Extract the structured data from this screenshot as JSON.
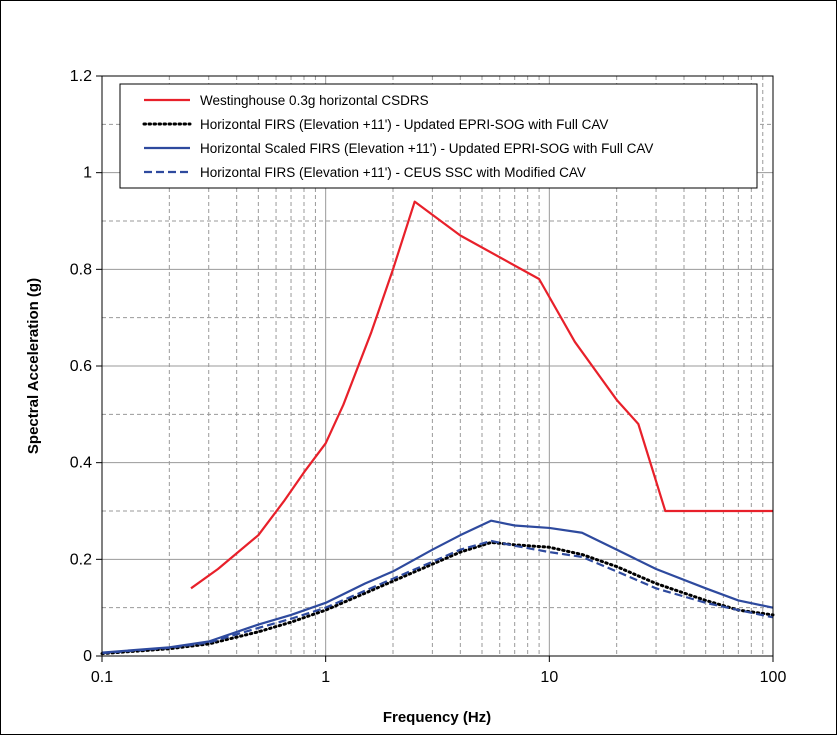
{
  "chart_data": {
    "type": "line",
    "title": "",
    "xlabel": "Frequency (Hz)",
    "ylabel": "Spectral Acceleration (g)",
    "xscale": "log",
    "xlim": [
      0.1,
      100
    ],
    "ylim": [
      0,
      1.2
    ],
    "x_ticks": [
      0.1,
      1,
      10,
      100
    ],
    "x_tick_labels": [
      "0.1",
      "1",
      "10",
      "100"
    ],
    "y_ticks": [
      0,
      0.2,
      0.4,
      0.6,
      0.8,
      1,
      1.2
    ],
    "y_tick_labels": [
      "0",
      "0.2",
      "0.4",
      "0.6",
      "0.8",
      "1",
      "1.2"
    ],
    "grid": true,
    "legend_position": "top",
    "series": [
      {
        "name": "Westinghouse 0.3g horizontal CSDRS",
        "color": "#e8202a",
        "style": "solid",
        "x": [
          0.25,
          0.33,
          0.5,
          0.65,
          0.8,
          1.0,
          1.2,
          1.6,
          2.0,
          2.5,
          4.0,
          9.0,
          13.0,
          20.0,
          25.0,
          33.0,
          50.0,
          100.0
        ],
        "y": [
          0.14,
          0.18,
          0.25,
          0.32,
          0.38,
          0.44,
          0.52,
          0.67,
          0.8,
          0.94,
          0.87,
          0.78,
          0.65,
          0.53,
          0.48,
          0.3,
          0.3,
          0.3
        ]
      },
      {
        "name": "Horizontal FIRS (Elevation +11') - Updated EPRI-SOG with Full CAV",
        "color": "#000000",
        "style": "dotted",
        "x": [
          0.1,
          0.2,
          0.3,
          0.5,
          0.7,
          1.0,
          1.5,
          2.0,
          3.0,
          4.0,
          5.5,
          7.0,
          10.0,
          14.0,
          20.0,
          30.0,
          50.0,
          70.0,
          100.0
        ],
        "y": [
          0.005,
          0.015,
          0.025,
          0.05,
          0.07,
          0.095,
          0.13,
          0.155,
          0.19,
          0.215,
          0.235,
          0.23,
          0.225,
          0.21,
          0.185,
          0.15,
          0.115,
          0.095,
          0.085
        ]
      },
      {
        "name": "Horizontal Scaled FIRS (Elevation +11') - Updated EPRI-SOG with Full CAV",
        "color": "#2e4a9e",
        "style": "solid",
        "x": [
          0.1,
          0.2,
          0.3,
          0.5,
          0.7,
          1.0,
          1.5,
          2.0,
          3.0,
          4.0,
          5.5,
          7.0,
          10.0,
          14.0,
          20.0,
          30.0,
          50.0,
          70.0,
          100.0
        ],
        "y": [
          0.007,
          0.018,
          0.03,
          0.065,
          0.085,
          0.11,
          0.15,
          0.175,
          0.22,
          0.25,
          0.28,
          0.27,
          0.265,
          0.255,
          0.22,
          0.18,
          0.14,
          0.115,
          0.1
        ]
      },
      {
        "name": "Horizontal FIRS (Elevation +11') - CEUS SSC with Modified CAV",
        "color": "#2e4a9e",
        "style": "dashed",
        "x": [
          0.1,
          0.2,
          0.3,
          0.5,
          0.7,
          1.0,
          1.5,
          2.0,
          3.0,
          4.0,
          5.5,
          7.0,
          10.0,
          14.0,
          20.0,
          30.0,
          50.0,
          70.0,
          100.0
        ],
        "y": [
          0.006,
          0.017,
          0.028,
          0.058,
          0.077,
          0.1,
          0.135,
          0.16,
          0.195,
          0.22,
          0.238,
          0.228,
          0.215,
          0.205,
          0.175,
          0.14,
          0.11,
          0.095,
          0.08
        ]
      }
    ]
  }
}
